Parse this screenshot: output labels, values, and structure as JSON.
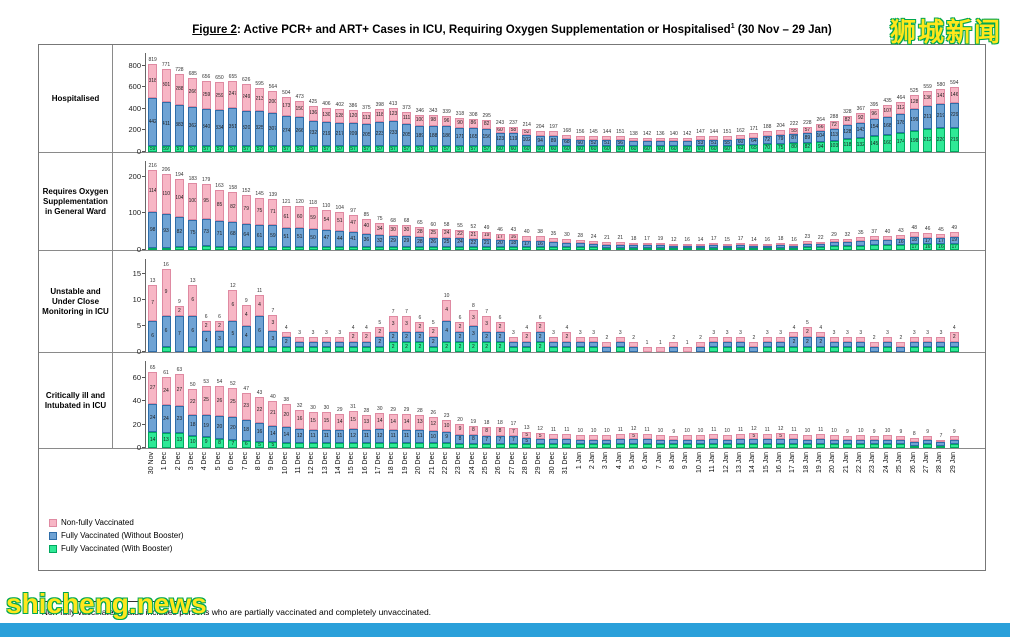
{
  "page": {
    "watermark_top_right": "狮城新闻",
    "watermark_bottom_left": "shicheng.news"
  },
  "title": {
    "figure_label": "Figure 2",
    "main": ": Active PCR+ and ART+ Cases in ICU, Requiring Oxygen Supplementation or Hospitalised",
    "superscript": "1",
    "date_range": " (30 Nov – 29 Jan)"
  },
  "footnote": {
    "superscript": "1",
    "text": " Non-fully vaccinated status includes persons who are partially vaccinated and completely unvaccinated."
  },
  "legend": [
    {
      "label": "Non-fully Vaccinated",
      "color": "#f7b6c5",
      "border": "#df8aa2"
    },
    {
      "label": "Fully Vaccinated (Without Booster)",
      "color": "#6fa3d4",
      "border": "#2f6da8"
    },
    {
      "label": "Fully Vaccinated (With Booster)",
      "color": "#2fe996",
      "border": "#00a85f"
    }
  ],
  "dates": [
    "30 Nov",
    "1 Dec",
    "2 Dec",
    "3 Dec",
    "4 Dec",
    "5 Dec",
    "6 Dec",
    "7 Dec",
    "8 Dec",
    "9 Dec",
    "10 Dec",
    "11 Dec",
    "12 Dec",
    "13 Dec",
    "14 Dec",
    "15 Dec",
    "16 Dec",
    "17 Dec",
    "18 Dec",
    "19 Dec",
    "20 Dec",
    "21 Dec",
    "22 Dec",
    "23 Dec",
    "24 Dec",
    "25 Dec",
    "26 Dec",
    "27 Dec",
    "28 Dec",
    "29 Dec",
    "30 Dec",
    "31 Dec",
    "1 Jan",
    "2 Jan",
    "3 Jan",
    "4 Jan",
    "5 Jan",
    "6 Jan",
    "7 Jan",
    "8 Jan",
    "9 Jan",
    "10 Jan",
    "11 Jan",
    "12 Jan",
    "13 Jan",
    "14 Jan",
    "15 Jan",
    "16 Jan",
    "17 Jan",
    "18 Jan",
    "19 Jan",
    "20 Jan",
    "21 Jan",
    "22 Jan",
    "23 Jan",
    "24 Jan",
    "25 Jan",
    "26 Jan",
    "27 Jan",
    "28 Jan",
    "29 Jan"
  ],
  "chart_data": [
    {
      "type": "bar",
      "stacked": true,
      "title": "Hospitalised",
      "ylim": [
        0,
        800
      ],
      "yticks": [
        0,
        200,
        400,
        600,
        800
      ],
      "ymax_render": 870,
      "series": [
        {
          "name": "Non-fully Vaccinated",
          "values": [
            318,
            301,
            288,
            266,
            259,
            259,
            247,
            249,
            213,
            200,
            173,
            150,
            136,
            130,
            128,
            120,
            113,
            118,
            123,
            111,
            100,
            98,
            96,
            90,
            86,
            82,
            60,
            58,
            52,
            50,
            48,
            40,
            36,
            33,
            33,
            35,
            31,
            32,
            30,
            31,
            32,
            34,
            33,
            36,
            39,
            42,
            46,
            50,
            55,
            57,
            66,
            72,
            82,
            92,
            96,
            107,
            112,
            128,
            136,
            141,
            146
          ]
        },
        {
          "name": "Fully Vaccinated (Without Booster)",
          "values": [
            442,
            411,
            383,
            362,
            340,
            334,
            351,
            320,
            325,
            307,
            274,
            266,
            232,
            219,
            217,
            209,
            205,
            223,
            233,
            205,
            189,
            188,
            186,
            171,
            165,
            156,
            123,
            119,
            102,
            94,
            89,
            68,
            60,
            52,
            51,
            56,
            47,
            50,
            46,
            49,
            50,
            53,
            51,
            55,
            60,
            64,
            72,
            79,
            87,
            89,
            104,
            113,
            128,
            143,
            154,
            168,
            178,
            199,
            211,
            219,
            229
          ]
        },
        {
          "name": "Fully Vaccinated (With Booster)",
          "values": [
            59,
            59,
            57,
            57,
            57,
            57,
            57,
            57,
            57,
            57,
            57,
            57,
            57,
            57,
            57,
            57,
            57,
            57,
            57,
            57,
            57,
            57,
            57,
            57,
            57,
            57,
            60,
            60,
            60,
            60,
            60,
            60,
            60,
            60,
            60,
            60,
            60,
            60,
            60,
            60,
            60,
            60,
            60,
            60,
            63,
            65,
            70,
            75,
            80,
            82,
            94,
            103,
            118,
            132,
            145,
            160,
            174,
            198,
            212,
            220,
            219
          ]
        }
      ]
    },
    {
      "type": "bar",
      "stacked": true,
      "title": "Requires Oxygen Supplementation in General Ward",
      "ylim": [
        0,
        200
      ],
      "yticks": [
        0,
        100,
        200
      ],
      "ymax_render": 230,
      "series": [
        {
          "name": "Non-fully Vaccinated",
          "values": [
            114,
            110,
            104,
            100,
            95,
            85,
            82,
            79,
            75,
            71,
            61,
            60,
            59,
            54,
            51,
            47,
            40,
            34,
            30,
            30,
            28,
            25,
            24,
            22,
            21,
            19,
            17,
            16,
            14,
            13,
            12,
            10,
            9,
            8,
            7,
            7,
            6,
            5,
            6,
            4,
            5,
            4,
            5,
            5,
            5,
            4,
            5,
            5,
            5,
            7,
            6,
            8,
            9,
            10,
            10,
            11,
            12,
            13,
            13,
            12,
            13
          ]
        },
        {
          "name": "Fully Vaccinated (Without Booster)",
          "values": [
            98,
            93,
            82,
            75,
            73,
            71,
            68,
            64,
            61,
            59,
            51,
            51,
            50,
            47,
            44,
            41,
            36,
            32,
            29,
            29,
            28,
            26,
            25,
            24,
            22,
            21,
            20,
            18,
            17,
            16,
            14,
            12,
            11,
            9,
            8,
            8,
            7,
            7,
            8,
            5,
            6,
            6,
            7,
            6,
            7,
            6,
            6,
            7,
            6,
            9,
            9,
            11,
            12,
            13,
            14,
            15,
            16,
            18,
            17,
            17,
            19
          ]
        },
        {
          "name": "Fully Vaccinated (With Booster)",
          "values": [
            4,
            3,
            8,
            8,
            11,
            7,
            8,
            9,
            9,
            9,
            9,
            9,
            9,
            9,
            9,
            9,
            9,
            9,
            9,
            9,
            9,
            9,
            9,
            9,
            9,
            9,
            9,
            9,
            9,
            9,
            9,
            8,
            8,
            7,
            6,
            6,
            5,
            5,
            5,
            3,
            5,
            4,
            5,
            4,
            5,
            4,
            5,
            6,
            5,
            7,
            7,
            10,
            11,
            12,
            13,
            14,
            15,
            17,
            16,
            16,
            17
          ]
        }
      ]
    },
    {
      "type": "bar",
      "stacked": true,
      "title": "Unstable and Under Close Monitoring in ICU",
      "ylim": [
        0,
        15
      ],
      "yticks": [
        0,
        5,
        10,
        15
      ],
      "ymax_render": 17,
      "series": [
        {
          "name": "Non-fully Vaccinated",
          "values": [
            7,
            9,
            2,
            6,
            2,
            2,
            6,
            4,
            4,
            3,
            1,
            1,
            1,
            1,
            1,
            2,
            2,
            2,
            3,
            3,
            2,
            2,
            4,
            2,
            3,
            3,
            2,
            1,
            2,
            2,
            1,
            2,
            1,
            1,
            1,
            1,
            1,
            1,
            1,
            1,
            1,
            1,
            1,
            1,
            1,
            1,
            1,
            1,
            1,
            2,
            1,
            1,
            1,
            1,
            1,
            1,
            1,
            1,
            1,
            1,
            2
          ]
        },
        {
          "name": "Fully Vaccinated (Without Booster)",
          "values": [
            6,
            6,
            7,
            6,
            4,
            3,
            5,
            4,
            6,
            3,
            2,
            1,
            1,
            1,
            1,
            1,
            1,
            2,
            2,
            2,
            2,
            2,
            4,
            2,
            3,
            2,
            2,
            1,
            1,
            2,
            1,
            1,
            1,
            1,
            1,
            1,
            1,
            0,
            0,
            1,
            0,
            1,
            1,
            1,
            1,
            1,
            1,
            1,
            2,
            2,
            2,
            1,
            1,
            1,
            1,
            1,
            1,
            1,
            1,
            1,
            1
          ]
        },
        {
          "name": "Fully Vaccinated (With Booster)",
          "values": [
            0,
            1,
            0,
            1,
            0,
            1,
            1,
            1,
            1,
            1,
            1,
            1,
            1,
            1,
            1,
            1,
            1,
            1,
            2,
            2,
            2,
            1,
            2,
            2,
            2,
            2,
            2,
            1,
            1,
            2,
            1,
            1,
            1,
            1,
            0,
            1,
            0,
            0,
            0,
            0,
            0,
            0,
            1,
            1,
            1,
            0,
            1,
            1,
            1,
            1,
            1,
            1,
            1,
            1,
            0,
            1,
            0,
            1,
            1,
            1,
            1
          ]
        }
      ]
    },
    {
      "type": "bar",
      "stacked": true,
      "title": "Critically ill and Intubated in ICU",
      "ylim": [
        0,
        60
      ],
      "yticks": [
        0,
        20,
        40,
        60
      ],
      "ymax_render": 70,
      "series": [
        {
          "name": "Non-fully Vaccinated",
          "values": [
            27,
            24,
            27,
            22,
            25,
            26,
            25,
            23,
            22,
            21,
            20,
            16,
            15,
            15,
            14,
            15,
            13,
            14,
            14,
            14,
            13,
            12,
            10,
            9,
            8,
            8,
            8,
            7,
            5,
            5,
            4,
            4,
            4,
            4,
            4,
            4,
            5,
            4,
            4,
            3,
            4,
            4,
            4,
            4,
            4,
            5,
            4,
            5,
            4,
            4,
            4,
            4,
            3,
            4,
            3,
            4,
            3,
            3,
            3,
            2,
            3
          ]
        },
        {
          "name": "Fully Vaccinated (Without Booster)",
          "values": [
            24,
            24,
            23,
            18,
            19,
            20,
            20,
            18,
            16,
            14,
            14,
            12,
            11,
            11,
            11,
            12,
            11,
            12,
            11,
            11,
            11,
            10,
            9,
            8,
            8,
            7,
            7,
            7,
            5,
            4,
            4,
            4,
            3,
            3,
            3,
            4,
            4,
            4,
            3,
            3,
            3,
            3,
            4,
            3,
            4,
            4,
            4,
            4,
            4,
            3,
            4,
            3,
            3,
            3,
            3,
            3,
            3,
            3,
            3,
            3,
            3
          ]
        },
        {
          "name": "Fully Vaccinated (With Booster)",
          "values": [
            14,
            13,
            13,
            10,
            9,
            8,
            7,
            6,
            5,
            5,
            4,
            4,
            4,
            4,
            4,
            4,
            4,
            4,
            4,
            4,
            4,
            4,
            4,
            3,
            3,
            3,
            3,
            3,
            3,
            3,
            3,
            3,
            3,
            3,
            3,
            3,
            3,
            3,
            3,
            3,
            3,
            3,
            3,
            3,
            3,
            3,
            3,
            3,
            3,
            3,
            3,
            3,
            3,
            3,
            3,
            3,
            3,
            2,
            3,
            2,
            3
          ]
        }
      ]
    }
  ]
}
